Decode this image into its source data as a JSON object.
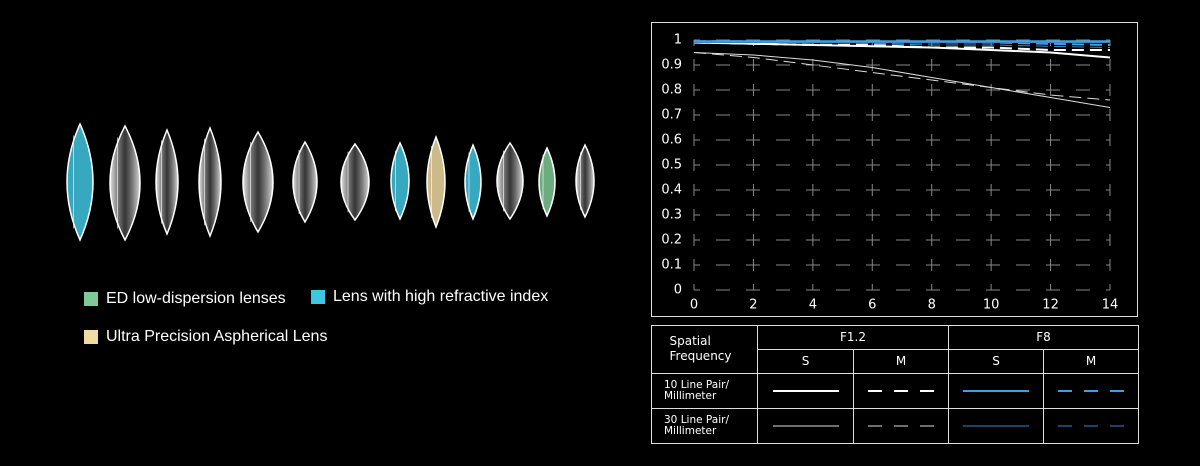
{
  "lens_legend": [
    {
      "label": "ED low-dispersion lenses",
      "color": "#7fcb95"
    },
    {
      "label": "Lens with high refractive index",
      "color": "#3fc6e2"
    },
    {
      "label": "Ultra Precision Aspherical Lens",
      "color": "#f0dca0"
    }
  ],
  "chart_data": {
    "type": "line",
    "x": [
      0,
      2,
      4,
      6,
      8,
      10,
      12,
      14
    ],
    "xlim": [
      0,
      14
    ],
    "xticks": [
      0,
      2,
      4,
      6,
      8,
      10,
      12,
      14
    ],
    "ylim": [
      0,
      1
    ],
    "yticks": [
      0,
      0.1,
      0.2,
      0.3,
      0.4,
      0.5,
      0.6,
      0.7,
      0.8,
      0.9,
      1
    ],
    "grid": true,
    "series": [
      {
        "color": "#ffffff",
        "dash": false,
        "width": 2,
        "values": [
          0.99,
          0.985,
          0.98,
          0.975,
          0.97,
          0.96,
          0.95,
          0.93
        ]
      },
      {
        "color": "#ffffff",
        "dash": true,
        "width": 2,
        "values": [
          0.99,
          0.985,
          0.98,
          0.98,
          0.97,
          0.97,
          0.96,
          0.96
        ]
      },
      {
        "color": "#3fa2e0",
        "dash": false,
        "width": 2,
        "values": [
          0.995,
          0.995,
          0.995,
          0.995,
          0.995,
          0.995,
          0.995,
          0.995
        ]
      },
      {
        "color": "#3fa2e0",
        "dash": true,
        "width": 2,
        "values": [
          0.995,
          0.995,
          0.99,
          0.99,
          0.99,
          0.99,
          0.985,
          0.98
        ]
      },
      {
        "color": "#dddddd",
        "dash": false,
        "width": 1,
        "values": [
          0.95,
          0.94,
          0.92,
          0.89,
          0.85,
          0.81,
          0.77,
          0.73
        ]
      },
      {
        "color": "#dddddd",
        "dash": true,
        "width": 1,
        "values": [
          0.95,
          0.93,
          0.9,
          0.87,
          0.84,
          0.81,
          0.78,
          0.76
        ]
      },
      {
        "color": "#3a86c8",
        "dash": false,
        "width": 1,
        "values": [
          0.99,
          0.99,
          0.99,
          0.99,
          0.99,
          0.99,
          0.99,
          0.99
        ]
      },
      {
        "color": "#3a86c8",
        "dash": true,
        "width": 1,
        "values": [
          0.99,
          0.99,
          0.99,
          0.985,
          0.98,
          0.98,
          0.975,
          0.97
        ]
      }
    ]
  },
  "table": {
    "corner": "Spatial Frequency",
    "apertures": [
      "F1.2",
      "F8"
    ],
    "types": [
      "S",
      "M"
    ],
    "rows": [
      "10 Line Pair/ Millimeter",
      "30 Line Pair/ Millimeter"
    ]
  }
}
